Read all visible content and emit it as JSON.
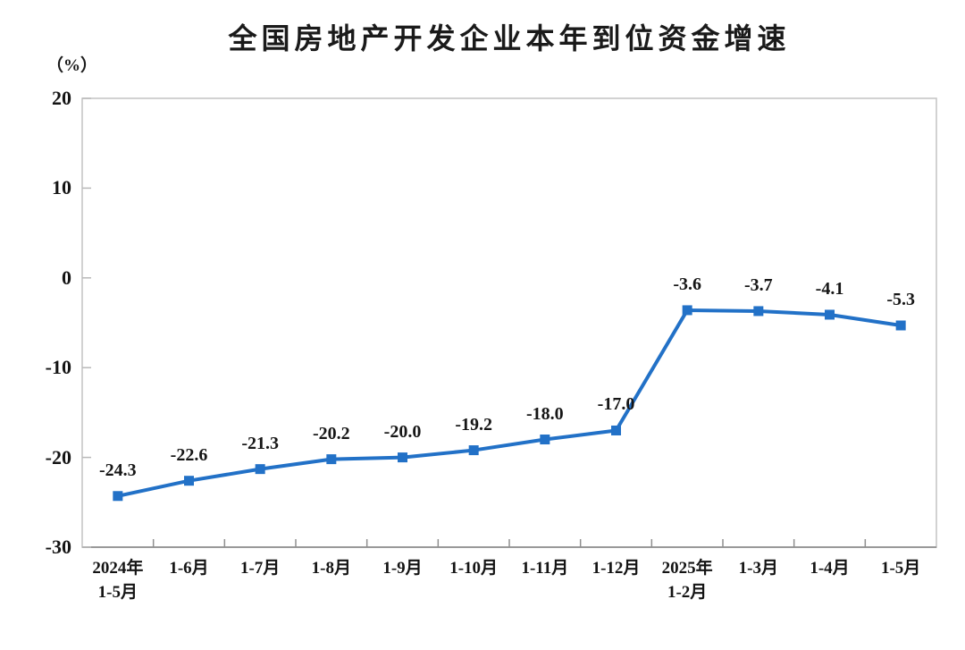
{
  "title": "全国房地产开发企业本年到位资金增速",
  "unit_label": "（%）",
  "chart_data": {
    "type": "line",
    "title": "全国房地产开发企业本年到位资金增速",
    "unit": "（%）",
    "categories": [
      [
        "2024年",
        "1-5月"
      ],
      [
        "1-6月"
      ],
      [
        "1-7月"
      ],
      [
        "1-8月"
      ],
      [
        "1-9月"
      ],
      [
        "1-10月"
      ],
      [
        "1-11月"
      ],
      [
        "1-12月"
      ],
      [
        "2025年",
        "1-2月"
      ],
      [
        "1-3月"
      ],
      [
        "1-4月"
      ],
      [
        "1-5月"
      ]
    ],
    "values": [
      -24.3,
      -22.6,
      -21.3,
      -20.2,
      -20.0,
      -19.2,
      -18.0,
      -17.0,
      -3.6,
      -3.7,
      -4.1,
      -5.3
    ],
    "value_labels": [
      "-24.3",
      "-22.6",
      "-21.3",
      "-20.2",
      "-20.0",
      "-19.2",
      "-18.0",
      "-17.0",
      "-3.6",
      "-3.7",
      "-4.1",
      "-5.3"
    ],
    "ylim": [
      -30,
      20
    ],
    "yticks": [
      20,
      10,
      0,
      -10,
      -20,
      -30
    ],
    "grid": false,
    "legend": "none",
    "line_color": "#2271c7",
    "marker": "square",
    "plot_border_color": "#c6c6c6",
    "bottom_axis_color": "#8f8f8f",
    "tick_color": "#b9b9b9"
  }
}
